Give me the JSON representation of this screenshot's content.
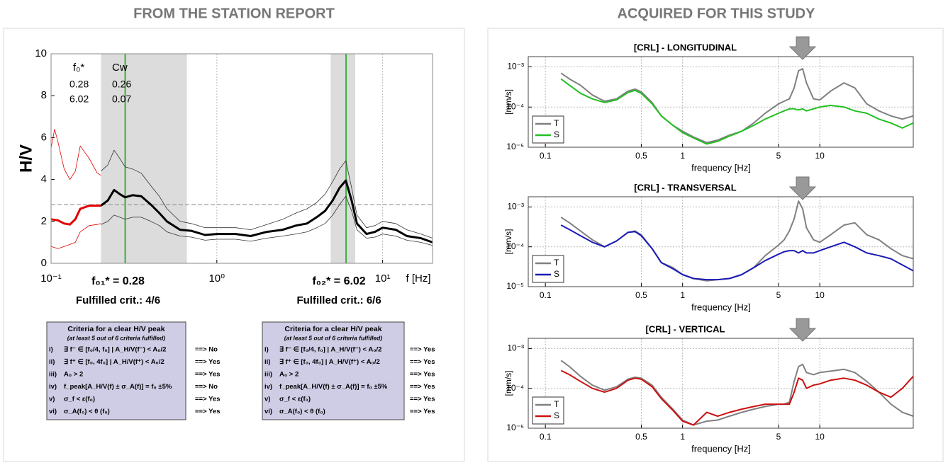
{
  "headers": [
    "FROM THE STATION REPORT",
    "ACQUIRED FOR THIS STUDY"
  ],
  "chart_data": [
    {
      "type": "line",
      "xlabel": "f [Hz]",
      "ylabel": "H/V",
      "xscale": "log",
      "grid": "x",
      "xlim": [
        0.1,
        20
      ],
      "ylim": [
        0,
        10
      ],
      "xticks": [
        {
          "value": 0.1,
          "label": "10⁻¹"
        },
        {
          "value": 1,
          "label": "10⁰"
        },
        {
          "value": 10,
          "label": "10¹"
        }
      ],
      "yticks": [
        0,
        2,
        4,
        6,
        8,
        10
      ],
      "shaded": [
        [
          0.2,
          0.66
        ],
        [
          4.86,
          6.84
        ]
      ],
      "vlines": [
        0.28,
        6.02
      ],
      "vline_color": "#3cae3c",
      "hline": 2.8,
      "series": [
        {
          "color": "#e00000",
          "width": 0.8,
          "x": [
            0.1,
            0.105,
            0.11,
            0.12,
            0.13,
            0.14,
            0.15,
            0.17,
            0.19,
            0.2
          ],
          "values": [
            5.5,
            6.4,
            5.8,
            4.5,
            4.0,
            4.4,
            5.6,
            5.0,
            4.3,
            4.2
          ]
        },
        {
          "color": "#e00000",
          "width": 0.8,
          "x": [
            0.1,
            0.11,
            0.12,
            0.13,
            0.14,
            0.15,
            0.17,
            0.19,
            0.2
          ],
          "values": [
            0.8,
            0.7,
            0.8,
            0.9,
            1.0,
            1.5,
            1.8,
            1.85,
            1.9
          ]
        },
        {
          "color": "#e00000",
          "width": 3,
          "x": [
            0.1,
            0.11,
            0.12,
            0.13,
            0.14,
            0.15,
            0.17,
            0.19,
            0.2
          ],
          "values": [
            2.1,
            2.05,
            1.9,
            1.85,
            2.1,
            2.6,
            2.75,
            2.75,
            2.75
          ]
        },
        {
          "color": "#333333",
          "width": 0.8,
          "x": [
            0.2,
            0.22,
            0.24,
            0.26,
            0.28,
            0.31,
            0.35,
            0.4,
            0.45,
            0.5,
            0.6,
            0.7,
            0.85,
            1,
            1.3,
            1.6,
            2,
            2.5,
            3,
            3.5,
            4,
            4.5,
            5,
            5.5,
            6,
            6.5,
            7,
            8,
            9,
            10,
            12,
            14,
            17,
            20
          ],
          "values": [
            4.4,
            4.7,
            5.4,
            5.0,
            4.6,
            4.5,
            4.3,
            3.7,
            3.2,
            2.6,
            2.0,
            1.9,
            1.7,
            1.7,
            1.7,
            1.6,
            1.85,
            2.1,
            2.4,
            2.6,
            2.9,
            3.3,
            3.9,
            4.5,
            4.9,
            3.6,
            2.3,
            1.7,
            1.8,
            2.0,
            1.9,
            1.6,
            1.4,
            1.2
          ]
        },
        {
          "color": "#333333",
          "width": 0.8,
          "x": [
            0.2,
            0.22,
            0.24,
            0.26,
            0.28,
            0.31,
            0.35,
            0.4,
            0.45,
            0.5,
            0.6,
            0.7,
            0.85,
            1,
            1.3,
            1.6,
            2,
            2.5,
            3,
            3.5,
            4,
            4.5,
            5,
            5.5,
            6,
            6.5,
            7,
            8,
            9,
            10,
            12,
            14,
            17,
            20
          ],
          "values": [
            1.85,
            2.0,
            2.3,
            2.2,
            2.1,
            2.2,
            2.2,
            2.0,
            1.8,
            1.5,
            1.3,
            1.25,
            1.1,
            1.15,
            1.15,
            1.05,
            1.2,
            1.3,
            1.4,
            1.5,
            1.7,
            1.9,
            2.3,
            2.8,
            3.2,
            2.5,
            1.6,
            1.2,
            1.25,
            1.4,
            1.3,
            1.1,
            1.0,
            0.85
          ]
        },
        {
          "color": "#000000",
          "width": 3,
          "x": [
            0.2,
            0.22,
            0.24,
            0.26,
            0.28,
            0.31,
            0.35,
            0.4,
            0.45,
            0.5,
            0.6,
            0.7,
            0.85,
            1,
            1.3,
            1.6,
            2,
            2.5,
            3,
            3.5,
            4,
            4.5,
            5,
            5.5,
            6,
            6.5,
            7,
            8,
            9,
            10,
            12,
            14,
            17,
            20
          ],
          "values": [
            2.75,
            3.0,
            3.5,
            3.3,
            3.15,
            3.25,
            3.2,
            2.8,
            2.4,
            2.0,
            1.6,
            1.55,
            1.35,
            1.4,
            1.4,
            1.3,
            1.5,
            1.6,
            1.8,
            1.9,
            2.2,
            2.5,
            3.0,
            3.6,
            3.95,
            3.0,
            1.9,
            1.4,
            1.5,
            1.7,
            1.6,
            1.3,
            1.2,
            1.0
          ]
        }
      ],
      "table": {
        "header": [
          "f₀*",
          "Cw"
        ],
        "rows": [
          [
            "0.28",
            "0.26"
          ],
          [
            "6.02",
            "0.07"
          ]
        ]
      },
      "peak_labels": [
        {
          "text": "f₀₁* =  0.28",
          "crit": "Fulfilled crit.: 4/6"
        },
        {
          "text": "f₀₂* =  6.02",
          "crit": "Fulfilled crit.: 6/6"
        }
      ]
    },
    {
      "type": "line",
      "title": "[CRL] - LONGITUDINAL",
      "xlabel": "frequency [Hz]",
      "ylabel": "[mm/s]",
      "xscale": "log",
      "yscale": "log",
      "grid": "both",
      "legend": "lower left",
      "xlim": [
        0.075,
        48
      ],
      "ylim": [
        1e-05,
        0.0018
      ],
      "xticks": [
        0.1,
        0.5,
        1,
        5,
        10
      ],
      "yticks": [
        {
          "value": 1e-05,
          "label": "10⁻⁵"
        },
        {
          "value": 0.0001,
          "label": "10⁻⁴"
        },
        {
          "value": 0.001,
          "label": "10⁻³"
        }
      ],
      "x": [
        0.13,
        0.15,
        0.18,
        0.22,
        0.27,
        0.33,
        0.4,
        0.45,
        0.5,
        0.6,
        0.7,
        0.85,
        1,
        1.2,
        1.5,
        1.8,
        2.2,
        2.7,
        3.3,
        4,
        5,
        5.5,
        6,
        6.5,
        7,
        7.5,
        8,
        9,
        10,
        12,
        15,
        18,
        22,
        27,
        33,
        40,
        48
      ],
      "series": [
        {
          "name": "T",
          "color": "#808080",
          "values": [
            0.0007,
            0.0005,
            0.00035,
            0.0002,
            0.00014,
            0.00016,
            0.00025,
            0.00028,
            0.00024,
            0.00013,
            6e-05,
            3.5e-05,
            2.5e-05,
            1.8e-05,
            1.3e-05,
            1.5e-05,
            2e-05,
            2.5e-05,
            4e-05,
            7e-05,
            0.00012,
            0.00014,
            0.00016,
            0.0003,
            0.0008,
            0.0009,
            0.0004,
            0.00016,
            0.00015,
            0.00025,
            0.0004,
            0.0003,
            0.00012,
            8e-05,
            6e-05,
            5e-05,
            6e-05
          ]
        },
        {
          "name": "S",
          "color": "#22c022",
          "values": [
            0.0005,
            0.00035,
            0.00022,
            0.00016,
            0.00013,
            0.00015,
            0.00023,
            0.00026,
            0.00022,
            0.00012,
            6e-05,
            3.5e-05,
            2.3e-05,
            1.7e-05,
            1.2e-05,
            1.4e-05,
            1.9e-05,
            2.5e-05,
            3.5e-05,
            5e-05,
            7e-05,
            8e-05,
            9e-05,
            9e-05,
            8.5e-05,
            9e-05,
            8e-05,
            9e-05,
            0.0001,
            0.00011,
            0.0001,
            8e-05,
            7e-05,
            5e-05,
            4e-05,
            3e-05,
            4e-05
          ]
        }
      ]
    },
    {
      "type": "line",
      "title": "[CRL] - TRANSVERSAL",
      "xlabel": "frequency [Hz]",
      "ylabel": "[mm/s]",
      "xscale": "log",
      "yscale": "log",
      "grid": "both",
      "legend": "lower left",
      "xlim": [
        0.075,
        48
      ],
      "ylim": [
        1e-05,
        0.0018
      ],
      "xticks": [
        0.1,
        0.5,
        1,
        5,
        10
      ],
      "yticks": [
        {
          "value": 1e-05,
          "label": "10⁻⁵"
        },
        {
          "value": 0.0001,
          "label": "10⁻⁴"
        },
        {
          "value": 0.001,
          "label": "10⁻³"
        }
      ],
      "x": [
        0.13,
        0.15,
        0.18,
        0.22,
        0.27,
        0.33,
        0.4,
        0.45,
        0.5,
        0.6,
        0.7,
        0.85,
        1,
        1.2,
        1.5,
        1.8,
        2.2,
        2.7,
        3.3,
        4,
        5,
        5.5,
        6,
        6.5,
        7,
        7.5,
        8,
        9,
        10,
        12,
        15,
        18,
        22,
        27,
        33,
        40,
        48
      ],
      "series": [
        {
          "name": "T",
          "color": "#808080",
          "values": [
            0.00055,
            0.0004,
            0.00025,
            0.00015,
            0.0001,
            0.00014,
            0.00023,
            0.00025,
            0.0002,
            9e-05,
            4e-05,
            3e-05,
            2e-05,
            1.6e-05,
            1.4e-05,
            1.5e-05,
            1.6e-05,
            2e-05,
            3e-05,
            6e-05,
            0.00011,
            0.00015,
            0.00025,
            0.0005,
            0.0014,
            0.0009,
            0.0003,
            0.00015,
            0.00013,
            0.0002,
            0.00035,
            0.0004,
            0.0002,
            0.00015,
            9e-05,
            6e-05,
            5e-05
          ]
        },
        {
          "name": "S",
          "color": "#1a1ab8",
          "values": [
            0.00035,
            0.00027,
            0.00019,
            0.00013,
            0.0001,
            0.00014,
            0.00023,
            0.00024,
            0.00019,
            9e-05,
            4e-05,
            2.8e-05,
            2e-05,
            1.6e-05,
            1.5e-05,
            1.5e-05,
            1.6e-05,
            2e-05,
            3e-05,
            4.5e-05,
            6.5e-05,
            7.5e-05,
            8e-05,
            8e-05,
            7e-05,
            8e-05,
            7e-05,
            7e-05,
            8e-05,
            0.0001,
            0.00013,
            0.0001,
            7e-05,
            6e-05,
            5e-05,
            3.5e-05,
            2.5e-05
          ]
        }
      ]
    },
    {
      "type": "line",
      "title": "[CRL] - VERTICAL",
      "xlabel": "frequency [Hz]",
      "ylabel": "[mm/s]",
      "xscale": "log",
      "yscale": "log",
      "grid": "both",
      "legend": "lower left",
      "xlim": [
        0.075,
        48
      ],
      "ylim": [
        1e-05,
        0.0018
      ],
      "xticks": [
        0.1,
        0.5,
        1,
        5,
        10
      ],
      "yticks": [
        {
          "value": 1e-05,
          "label": "10⁻⁵"
        },
        {
          "value": 0.0001,
          "label": "10⁻⁴"
        },
        {
          "value": 0.001,
          "label": "10⁻³"
        }
      ],
      "x": [
        0.13,
        0.15,
        0.18,
        0.22,
        0.27,
        0.33,
        0.4,
        0.45,
        0.5,
        0.6,
        0.7,
        0.85,
        1,
        1.2,
        1.5,
        1.8,
        2.2,
        2.7,
        3.3,
        4,
        5,
        5.5,
        6,
        6.5,
        7,
        7.5,
        8,
        9,
        10,
        12,
        15,
        18,
        22,
        27,
        33,
        40,
        48
      ],
      "series": [
        {
          "name": "T",
          "color": "#808080",
          "values": [
            0.0005,
            0.00035,
            0.0002,
            0.00012,
            9e-05,
            0.00011,
            0.00017,
            0.00019,
            0.00018,
            0.00012,
            6e-05,
            3e-05,
            1.6e-05,
            1.2e-05,
            1.5e-05,
            1.6e-05,
            2e-05,
            2.5e-05,
            3e-05,
            3.5e-05,
            4e-05,
            4e-05,
            4.5e-05,
            0.00015,
            0.00035,
            0.0004,
            0.00025,
            0.00022,
            0.00025,
            0.00027,
            0.0003,
            0.00025,
            0.00015,
            8e-05,
            4e-05,
            2.5e-05,
            2e-05
          ]
        },
        {
          "name": "S",
          "color": "#cc1010",
          "values": [
            0.00028,
            0.00022,
            0.00015,
            0.0001,
            8e-05,
            0.0001,
            0.00016,
            0.00018,
            0.00017,
            0.00011,
            5.5e-05,
            2.8e-05,
            1.5e-05,
            1.2e-05,
            2.5e-05,
            2e-05,
            2.5e-05,
            3e-05,
            3.5e-05,
            4e-05,
            4e-05,
            4e-05,
            4e-05,
            8e-05,
            0.00018,
            0.00016,
            0.0001,
            0.00012,
            0.00013,
            0.00016,
            0.00018,
            0.00016,
            0.00012,
            8e-05,
            6e-05,
            0.0001,
            0.0002
          ]
        }
      ]
    }
  ],
  "criteria": [
    {
      "title": "Criteria for a clear H/V peak",
      "subtitle": "(at least 5 out of 6 criteria fulfilled)",
      "rows": [
        [
          "i)",
          "∃ f⁻ ∈ [f₀/4, f₀] | A_H/V(f⁻) < A₀/2",
          "==> No"
        ],
        [
          "ii)",
          "∃ f⁺ ∈ [f₀, 4f₀] | A_H/V(f⁺) < A₀/2",
          "==> Yes"
        ],
        [
          "iii)",
          "A₀ > 2",
          "==> Yes"
        ],
        [
          "iv)",
          "f_peak[A_H/V(f) ± σ_A(f)] = f₀ ±5%",
          "==> No"
        ],
        [
          "v)",
          "σ_f < ε(f₀)",
          "==> Yes"
        ],
        [
          "vi)",
          "σ_A(f₀) < θ (f₀)",
          "==> Yes"
        ]
      ]
    },
    {
      "title": "Criteria for a clear H/V peak",
      "subtitle": "(at least 5 out of 6 criteria fulfilled)",
      "rows": [
        [
          "i)",
          "∃ f⁻ ∈ [f₀/4, f₀] | A_H/V(f⁻) < A₀/2",
          "==> Yes"
        ],
        [
          "ii)",
          "∃ f⁺ ∈ [f₀, 4f₀] | A_H/V(f⁺) < A₀/2",
          "==> Yes"
        ],
        [
          "iii)",
          "A₀ > 2",
          "==> Yes"
        ],
        [
          "iv)",
          "f_peak[A_H/V(f) ± σ_A(f)] = f₀ ±5%",
          "==> Yes"
        ],
        [
          "v)",
          "σ_f < ε(f₀)",
          "==> Yes"
        ],
        [
          "vi)",
          "σ_A(f₀) < θ (f₀)",
          "==> Yes"
        ]
      ]
    }
  ]
}
